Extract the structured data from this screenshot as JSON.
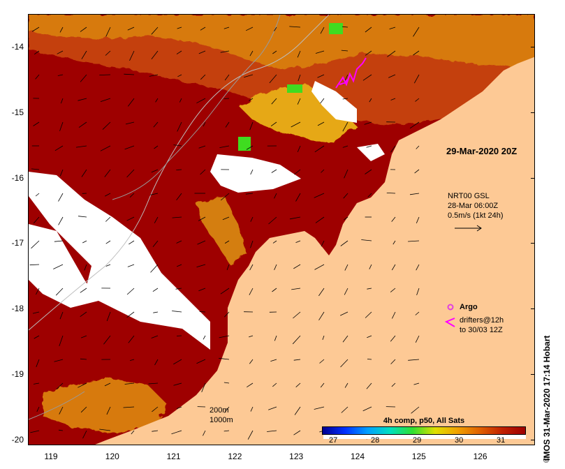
{
  "snapshot_time": "29-Mar-2020 20Z",
  "current_info": {
    "line1": "NRT00 GSL",
    "line2": "28-Mar 06:00Z",
    "line3": "0.5m/s (1kt 24h)"
  },
  "legend": {
    "argo_label": "Argo",
    "drifters_line1": "drifters@12h",
    "drifters_line2": "to 30/03 12Z",
    "argo_color": "#e040e0",
    "drifter_color": "#ff00ff"
  },
  "contours": {
    "label_200": "200m",
    "label_1000": "1000m"
  },
  "colorbar": {
    "title": "4h comp, p50, All Sats",
    "ticks": [
      "27",
      "28",
      "29",
      "30",
      "31"
    ]
  },
  "axes": {
    "lat_ticks": [
      "-14",
      "-15",
      "-16",
      "-17",
      "-18",
      "-19",
      "-20"
    ],
    "lon_ticks": [
      "119",
      "120",
      "121",
      "122",
      "123",
      "124",
      "125",
      "126"
    ]
  },
  "credit": "IMOS 31-Mar-2020 17:14 Hobart",
  "colors": {
    "land": "#fdc995",
    "sst_hot": "#9e0000",
    "sst_warm": "#c4400c",
    "sst_mid": "#d77a10",
    "sst_cool": "#e6a812",
    "sst_green": "#3fdc20",
    "cloud": "#ffffff"
  }
}
